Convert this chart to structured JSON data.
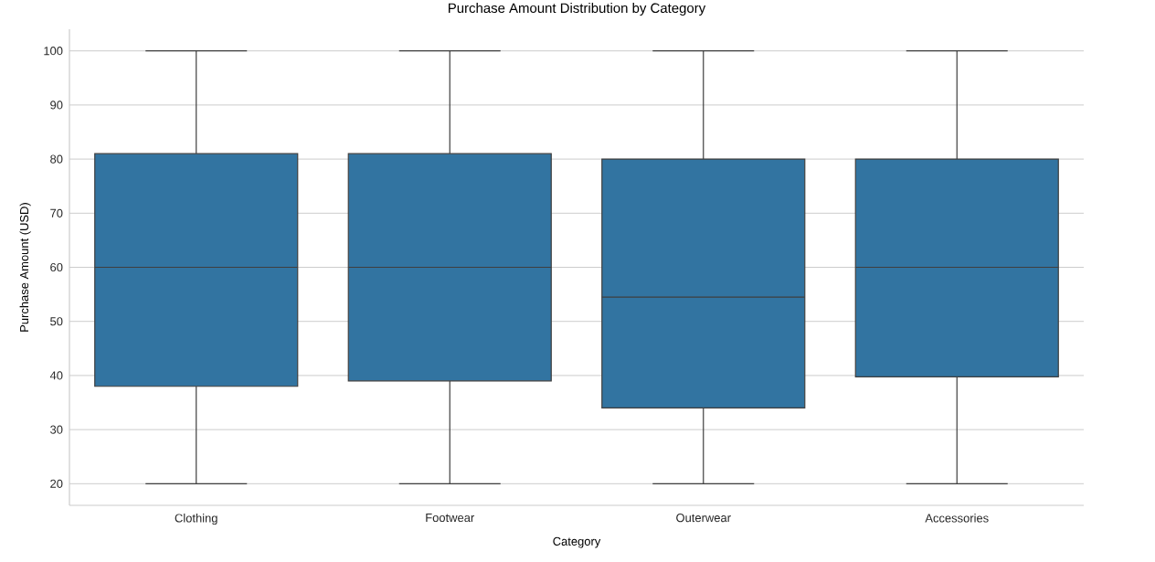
{
  "chart_data": {
    "type": "box",
    "title": "Purchase Amount Distribution by Category",
    "xlabel": "Category",
    "ylabel": "Purchase Amount (USD)",
    "categories": [
      "Clothing",
      "Footwear",
      "Outerwear",
      "Accessories"
    ],
    "color": "#3274a1",
    "boxes": [
      {
        "low": 20,
        "q1": 38,
        "median": 60,
        "q3": 81,
        "high": 100
      },
      {
        "low": 20,
        "q1": 39,
        "median": 60,
        "q3": 81,
        "high": 100
      },
      {
        "low": 20,
        "q1": 34,
        "median": 54.5,
        "q3": 80,
        "high": 100
      },
      {
        "low": 20,
        "q1": 39.75,
        "median": 60,
        "q3": 80,
        "high": 100
      }
    ],
    "ylim": [
      16,
      104
    ],
    "yticks": [
      20,
      30,
      40,
      50,
      60,
      70,
      80,
      90,
      100
    ],
    "grid": "y"
  }
}
